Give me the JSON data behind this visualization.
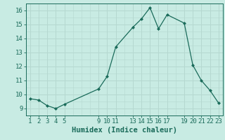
{
  "x": [
    1,
    2,
    3,
    4,
    5,
    9,
    10,
    11,
    13,
    14,
    15,
    16,
    17,
    19,
    20,
    21,
    22,
    23
  ],
  "y": [
    9.7,
    9.6,
    9.2,
    9.0,
    9.3,
    10.4,
    11.3,
    13.4,
    14.8,
    15.4,
    16.2,
    14.7,
    15.7,
    15.1,
    12.1,
    11.0,
    10.3,
    9.4
  ],
  "line_color": "#1a6b5a",
  "marker": "D",
  "marker_size": 2.0,
  "bg_color": "#c8ebe3",
  "grid_major_color": "#aad4cc",
  "grid_minor_color": "#c0e0da",
  "xlabel": "Humidex (Indice chaleur)",
  "xlim": [
    0.5,
    23.5
  ],
  "ylim": [
    8.5,
    16.5
  ],
  "xticks": [
    1,
    2,
    3,
    4,
    5,
    9,
    10,
    11,
    13,
    14,
    15,
    16,
    17,
    19,
    20,
    21,
    22,
    23
  ],
  "yticks": [
    9,
    10,
    11,
    12,
    13,
    14,
    15,
    16
  ],
  "xlabel_fontsize": 7.5,
  "tick_fontsize": 6.5
}
